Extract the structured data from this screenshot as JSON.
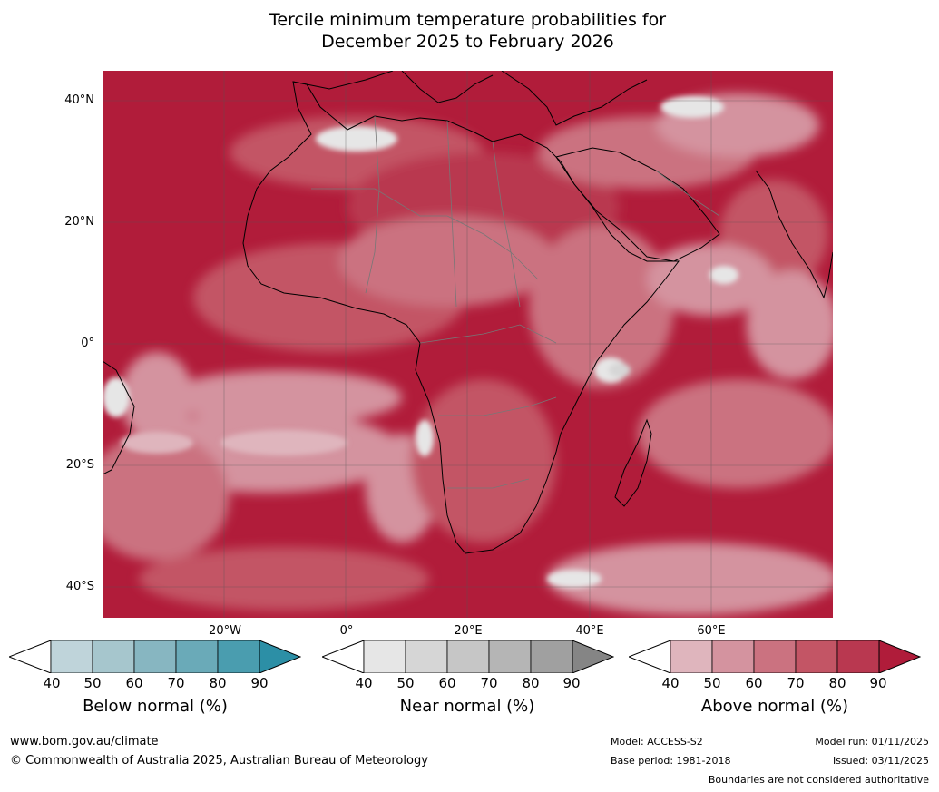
{
  "title_line1": "Tercile minimum temperature probabilities for",
  "title_line2": "December 2025 to February 2026",
  "lat_labels": [
    "40°N",
    "20°N",
    "0°",
    "20°S",
    "40°S"
  ],
  "lon_labels": [
    "20°W",
    "0°",
    "20°E",
    "40°E",
    "60°E"
  ],
  "colorbars": {
    "below": {
      "title": "Below normal (%)",
      "ticks": [
        "40",
        "50",
        "60",
        "70",
        "80",
        "90"
      ],
      "colors": [
        "#bfd4da",
        "#a6c6cd",
        "#87b6c1",
        "#6aaab8",
        "#4a9daf",
        "#2c8fa6"
      ]
    },
    "near": {
      "title": "Near normal (%)",
      "ticks": [
        "40",
        "50",
        "60",
        "70",
        "80",
        "90"
      ],
      "colors": [
        "#e6e6e6",
        "#d6d6d6",
        "#c6c6c6",
        "#b5b5b5",
        "#a0a0a0",
        "#858585"
      ]
    },
    "above": {
      "title": "Above normal (%)",
      "ticks": [
        "40",
        "50",
        "60",
        "70",
        "80",
        "90"
      ],
      "colors": [
        "#dfb5bd",
        "#d4939f",
        "#cb7280",
        "#c35565",
        "#b93850",
        "#b01c3a"
      ]
    }
  },
  "footer": {
    "website": "www.bom.gov.au/climate",
    "copyright": "© Commonwealth of Australia 2025, Australian Bureau of Meteorology",
    "model": "Model: ACCESS-S2",
    "base_period": "Base period: 1981-2018",
    "model_run": "Model run: 01/11/2025",
    "issued": "Issued: 03/11/2025",
    "disclaimer": "Boundaries are not considered authoritative"
  }
}
